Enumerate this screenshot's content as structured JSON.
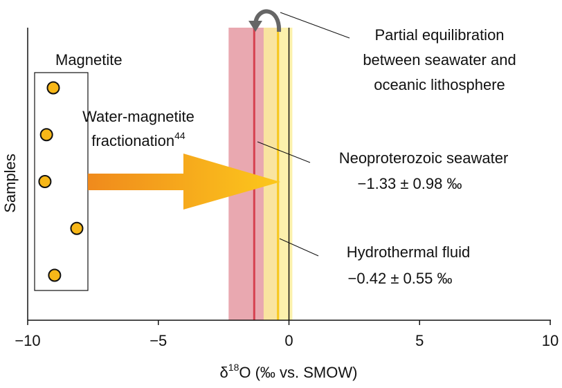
{
  "chart_data": {
    "type": "scatter",
    "x_label": {
      "prefix": "δ",
      "sup": "18",
      "rest": "O (‰ vs. SMOW)"
    },
    "y_label": "Samples",
    "xlim": [
      -10,
      10
    ],
    "xticks": [
      {
        "value": -10,
        "label": "−10"
      },
      {
        "value": -5,
        "label": "−5"
      },
      0,
      5,
      10
    ],
    "zero_line": 0,
    "series": [
      {
        "name": "Magnetite",
        "color": "#f7b718",
        "values": [
          -9.02,
          -9.28,
          -9.34,
          -8.12,
          -8.97
        ]
      }
    ],
    "bands": [
      {
        "name": "Neoproterozoic seawater",
        "value": -1.33,
        "error": 0.98,
        "value_label": "−1.33 ± 0.98 ‰",
        "color": "#e9a8b0",
        "line_color": "#d6404f"
      },
      {
        "name": "Hydrothermal fluid",
        "value": -0.42,
        "error": 0.55,
        "value_label": "−0.42 ± 0.55 ‰",
        "color": "#fbef9e",
        "line_color": "#f7c81e"
      }
    ],
    "arrow_label": {
      "line1": "Water-magnetite",
      "line2": "fractionation",
      "ref": "44",
      "color": "#f5a623"
    },
    "annotation": [
      "Partial equilibration",
      "between seawater and",
      "oceanic lithosphere"
    ]
  }
}
